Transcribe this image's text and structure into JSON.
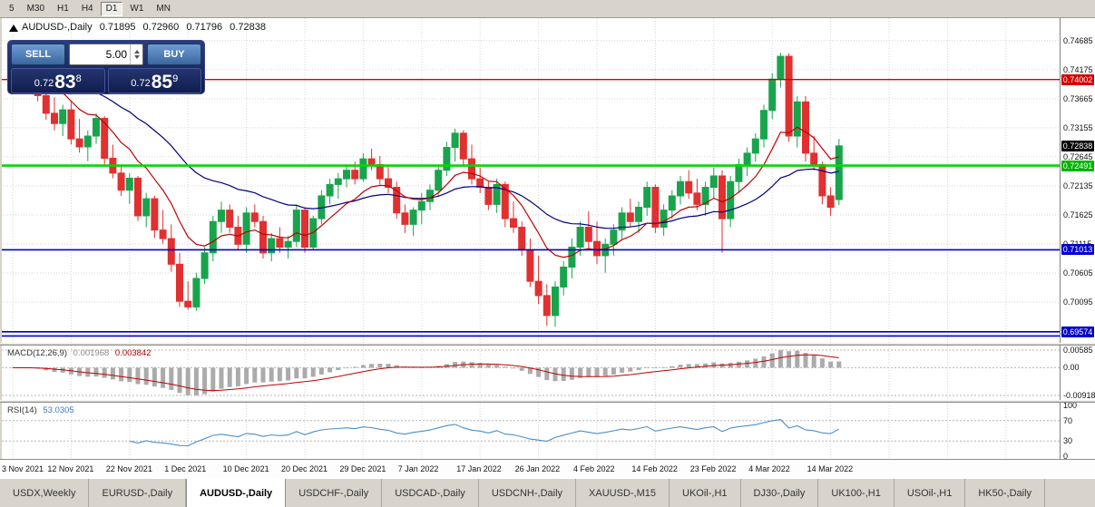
{
  "toolbar": {
    "timeframes": [
      "5",
      "M30",
      "H1",
      "H4",
      "D1",
      "W1",
      "MN"
    ],
    "active": "D1"
  },
  "chart": {
    "symbol": "AUDUSD-,Daily",
    "ohlc": {
      "open": "0.71895",
      "high": "0.72960",
      "low": "0.71796",
      "close": "0.72838"
    },
    "one_click": {
      "sell_label": "SELL",
      "buy_label": "BUY",
      "lot": "5.00",
      "sell_price_prefix": "0.72",
      "sell_price_big": "83",
      "sell_price_sup": "8",
      "buy_price_prefix": "0.72",
      "buy_price_big": "85",
      "buy_price_sup": "9"
    },
    "price_axis_labels": [
      "0.74685",
      "0.74175",
      "0.73665",
      "0.73155",
      "0.72645",
      "0.72135",
      "0.71625",
      "0.71115",
      "0.70605",
      "0.70095",
      "0.69585"
    ],
    "hlines": [
      {
        "price": 0.74002,
        "color": "#D40000",
        "width": 1.4,
        "badge": "0.74002",
        "badge_bg": "#D40000"
      },
      {
        "price": 0.72491,
        "color": "#00D800",
        "width": 2.6,
        "badge": "0.72491",
        "badge_bg": "#00B400"
      },
      {
        "price": 0.71013,
        "color": "#0000C8",
        "width": 1.6,
        "badge": "0.71013",
        "badge_bg": "#0000C8"
      },
      {
        "price": 0.69574,
        "color": "#0000C8",
        "width": 1.6,
        "badge": "0.69574",
        "badge_bg": "#0000C8"
      },
      {
        "price": 0.695,
        "color": "#0000C8",
        "width": 1.6
      }
    ],
    "current_price": {
      "value": "0.72838",
      "badge_bg": "#000000"
    }
  },
  "chart_data": {
    "type": "candlestick",
    "symbol": "AUDUSD",
    "timeframe": "Daily",
    "x_labels": [
      "3 Nov 2021",
      "12 Nov 2021",
      "22 Nov 2021",
      "1 Dec 2021",
      "10 Dec 2021",
      "20 Dec 2021",
      "29 Dec 2021",
      "7 Jan 2022",
      "17 Jan 2022",
      "26 Jan 2022",
      "4 Feb 2022",
      "14 Feb 2022",
      "23 Feb 2022",
      "4 Mar 2022",
      "14 Mar 2022"
    ],
    "label_every": 7,
    "price_range": [
      0.6938,
      0.7508
    ],
    "candles": [
      [
        0.7428,
        0.7441,
        0.741,
        0.7417
      ],
      [
        0.7417,
        0.7433,
        0.7388,
        0.7395
      ],
      [
        0.7395,
        0.7447,
        0.7387,
        0.744
      ],
      [
        0.744,
        0.7445,
        0.7362,
        0.7372
      ],
      [
        0.7372,
        0.7396,
        0.733,
        0.7341
      ],
      [
        0.7341,
        0.7369,
        0.7311,
        0.7323
      ],
      [
        0.7323,
        0.7356,
        0.7301,
        0.7347
      ],
      [
        0.7347,
        0.7361,
        0.7286,
        0.7296
      ],
      [
        0.7296,
        0.7331,
        0.7272,
        0.7282
      ],
      [
        0.7282,
        0.7311,
        0.7257,
        0.7301
      ],
      [
        0.7301,
        0.7341,
        0.7287,
        0.7332
      ],
      [
        0.7332,
        0.7336,
        0.7251,
        0.7262
      ],
      [
        0.7262,
        0.7286,
        0.7227,
        0.7236
      ],
      [
        0.7236,
        0.7251,
        0.7196,
        0.7206
      ],
      [
        0.7206,
        0.7236,
        0.7182,
        0.7227
      ],
      [
        0.7227,
        0.7231,
        0.7152,
        0.7161
      ],
      [
        0.7161,
        0.7201,
        0.7141,
        0.7191
      ],
      [
        0.7191,
        0.7196,
        0.7122,
        0.7136
      ],
      [
        0.7136,
        0.7171,
        0.7112,
        0.7121
      ],
      [
        0.7121,
        0.7146,
        0.7063,
        0.7076
      ],
      [
        0.7076,
        0.7096,
        0.7001,
        0.7011
      ],
      [
        0.7011,
        0.7046,
        0.6996,
        0.7001
      ],
      [
        0.7001,
        0.7061,
        0.6994,
        0.7051
      ],
      [
        0.7051,
        0.7106,
        0.7041,
        0.7096
      ],
      [
        0.7096,
        0.7161,
        0.7081,
        0.7151
      ],
      [
        0.7151,
        0.7186,
        0.7131,
        0.7171
      ],
      [
        0.7171,
        0.7181,
        0.7131,
        0.7141
      ],
      [
        0.7141,
        0.7161,
        0.7101,
        0.7111
      ],
      [
        0.7111,
        0.7176,
        0.7096,
        0.7166
      ],
      [
        0.7166,
        0.7181,
        0.7141,
        0.7151
      ],
      [
        0.7151,
        0.7161,
        0.7086,
        0.7096
      ],
      [
        0.7096,
        0.7131,
        0.7081,
        0.7121
      ],
      [
        0.7121,
        0.7141,
        0.7096,
        0.7106
      ],
      [
        0.7106,
        0.7126,
        0.7086,
        0.7116
      ],
      [
        0.7116,
        0.7181,
        0.7106,
        0.7171
      ],
      [
        0.7171,
        0.7176,
        0.7096,
        0.7106
      ],
      [
        0.7106,
        0.7161,
        0.7101,
        0.7156
      ],
      [
        0.7156,
        0.7206,
        0.7146,
        0.7196
      ],
      [
        0.7196,
        0.7226,
        0.7181,
        0.7216
      ],
      [
        0.7216,
        0.7236,
        0.7191,
        0.7226
      ],
      [
        0.7226,
        0.7251,
        0.7211,
        0.7241
      ],
      [
        0.7241,
        0.7256,
        0.7216,
        0.7226
      ],
      [
        0.7226,
        0.7271,
        0.7221,
        0.7261
      ],
      [
        0.7261,
        0.7279,
        0.7241,
        0.7251
      ],
      [
        0.7251,
        0.7266,
        0.7216,
        0.7226
      ],
      [
        0.7226,
        0.7251,
        0.7201,
        0.7211
      ],
      [
        0.7211,
        0.7221,
        0.7156,
        0.7166
      ],
      [
        0.7166,
        0.7181,
        0.7131,
        0.7146
      ],
      [
        0.7146,
        0.7176,
        0.7126,
        0.7171
      ],
      [
        0.7171,
        0.7201,
        0.7146,
        0.7186
      ],
      [
        0.7186,
        0.7216,
        0.7171,
        0.7206
      ],
      [
        0.7206,
        0.7251,
        0.7196,
        0.7241
      ],
      [
        0.7241,
        0.7291,
        0.7231,
        0.7281
      ],
      [
        0.7281,
        0.7314,
        0.7256,
        0.7306
      ],
      [
        0.7306,
        0.7311,
        0.7251,
        0.7261
      ],
      [
        0.7261,
        0.7286,
        0.7216,
        0.7226
      ],
      [
        0.7226,
        0.7246,
        0.7201,
        0.7211
      ],
      [
        0.7211,
        0.7221,
        0.7171,
        0.7181
      ],
      [
        0.7181,
        0.7226,
        0.7166,
        0.7216
      ],
      [
        0.7216,
        0.7221,
        0.7141,
        0.7156
      ],
      [
        0.7156,
        0.7186,
        0.7131,
        0.7141
      ],
      [
        0.7141,
        0.7151,
        0.7091,
        0.7101
      ],
      [
        0.7101,
        0.7121,
        0.7036,
        0.7046
      ],
      [
        0.7046,
        0.7091,
        0.7006,
        0.7021
      ],
      [
        0.7021,
        0.7041,
        0.6968,
        0.6986
      ],
      [
        0.6986,
        0.7046,
        0.6966,
        0.7036
      ],
      [
        0.7036,
        0.7081,
        0.7021,
        0.7071
      ],
      [
        0.7071,
        0.7121,
        0.7051,
        0.7106
      ],
      [
        0.7106,
        0.7151,
        0.7091,
        0.7141
      ],
      [
        0.7141,
        0.7169,
        0.7101,
        0.7116
      ],
      [
        0.7116,
        0.7151,
        0.7076,
        0.7091
      ],
      [
        0.7091,
        0.7121,
        0.7061,
        0.7111
      ],
      [
        0.7111,
        0.7146,
        0.7091,
        0.7136
      ],
      [
        0.7136,
        0.7176,
        0.7121,
        0.7166
      ],
      [
        0.7166,
        0.7191,
        0.7141,
        0.7151
      ],
      [
        0.7151,
        0.7186,
        0.7131,
        0.7176
      ],
      [
        0.7176,
        0.7221,
        0.7161,
        0.7211
      ],
      [
        0.7211,
        0.7216,
        0.7131,
        0.7141
      ],
      [
        0.7141,
        0.7181,
        0.7126,
        0.7171
      ],
      [
        0.7171,
        0.7206,
        0.7156,
        0.7196
      ],
      [
        0.7196,
        0.7231,
        0.7181,
        0.7221
      ],
      [
        0.7221,
        0.7241,
        0.7191,
        0.7201
      ],
      [
        0.7201,
        0.7226,
        0.7171,
        0.7181
      ],
      [
        0.7181,
        0.7221,
        0.7161,
        0.7211
      ],
      [
        0.7211,
        0.7246,
        0.7191,
        0.7231
      ],
      [
        0.7231,
        0.7241,
        0.7096,
        0.7156
      ],
      [
        0.7156,
        0.7231,
        0.7141,
        0.7221
      ],
      [
        0.7221,
        0.7261,
        0.7201,
        0.7251
      ],
      [
        0.7251,
        0.7281,
        0.7231,
        0.7271
      ],
      [
        0.7271,
        0.7306,
        0.7256,
        0.7296
      ],
      [
        0.7296,
        0.7356,
        0.7281,
        0.7346
      ],
      [
        0.7346,
        0.7411,
        0.7331,
        0.7401
      ],
      [
        0.7401,
        0.7447,
        0.7386,
        0.7441
      ],
      [
        0.7441,
        0.7446,
        0.7291,
        0.7301
      ],
      [
        0.7301,
        0.7371,
        0.7281,
        0.7361
      ],
      [
        0.7361,
        0.7371,
        0.7256,
        0.7271
      ],
      [
        0.7271,
        0.7301,
        0.7241,
        0.7251
      ],
      [
        0.7251,
        0.7256,
        0.7181,
        0.7196
      ],
      [
        0.7196,
        0.7211,
        0.7161,
        0.7176
      ],
      [
        0.71895,
        0.7296,
        0.71796,
        0.72838
      ]
    ]
  },
  "indicators": {
    "macd": {
      "name": "MACD(12,26,9)",
      "value_main": "0.001968",
      "value_signal": "0.003842",
      "axis_max": "0.00585",
      "axis_zero": "0.00",
      "axis_min": "-0.00918"
    },
    "rsi": {
      "name": "RSI(14)",
      "value": "53.0305",
      "axis": [
        "100",
        "70",
        "30",
        "0"
      ]
    }
  },
  "tabs": {
    "items": [
      "USDX,Weekly",
      "EURUSD-,Daily",
      "AUDUSD-,Daily",
      "USDCHF-,Daily",
      "USDCAD-,Daily",
      "USDCNH-,Daily",
      "XAUUSD-,M15",
      "UKOil-,H1",
      "DJ30-,Daily",
      "UK100-,H1",
      "USOil-,H1",
      "HK50-,Daily"
    ],
    "active": "AUDUSD-,Daily"
  },
  "colors": {
    "up": "#18A44C",
    "down": "#E03030",
    "ma_fast": "#C00000",
    "ma_slow": "#000080",
    "macd_bar": "#ABABAB",
    "macd_signal": "#C00000",
    "rsi": "#4A90C8",
    "grid": "#D6D6D6",
    "level": "#B4B4B4"
  }
}
